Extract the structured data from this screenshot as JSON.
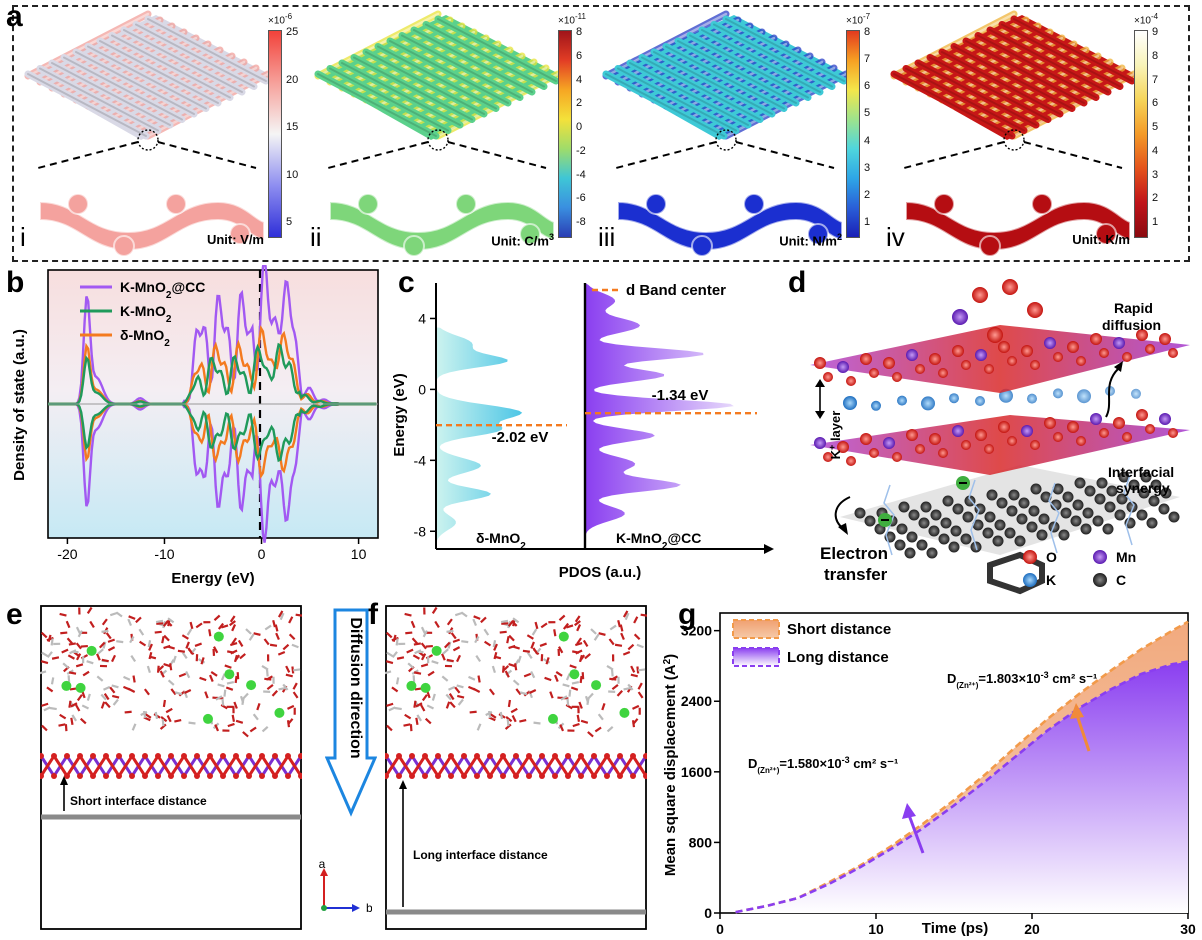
{
  "panel_labels": {
    "a": "a",
    "b": "b",
    "c": "c",
    "d": "d",
    "e": "e",
    "f": "f",
    "g": "g"
  },
  "panel_a": {
    "subpanels": [
      {
        "roman": "i",
        "unit": "Unit: V/m",
        "exponent": "×10",
        "exponent_power": "-6",
        "ticks": [
          "25",
          "20",
          "15",
          "10",
          "5"
        ],
        "colors": [
          "#f2423a",
          "#f6a09a",
          "#f5f5f5",
          "#8e8ef0",
          "#2f2fd8"
        ],
        "fabric": "#d9d9e6",
        "fabric_accent": "#f2a19c",
        "section": "#f4a29e"
      },
      {
        "roman": "ii",
        "unit": "Unit: C/m",
        "unit_sup": "3",
        "exponent": "×10",
        "exponent_power": "-11",
        "ticks": [
          "8",
          "6",
          "4",
          "2",
          "0",
          "-2",
          "-4",
          "-6",
          "-8"
        ],
        "colors": [
          "#a0141a",
          "#e23d25",
          "#f6a623",
          "#f4e13a",
          "#9fdc6a",
          "#3fc6d6",
          "#3a8fe0",
          "#2a3db4"
        ],
        "fabric": "#5bd18c",
        "fabric_accent": "#e9e43a",
        "section": "#7ed67a"
      },
      {
        "roman": "iii",
        "unit": "Unit: N/m",
        "unit_sup": "2",
        "exponent": "×10",
        "exponent_power": "-7",
        "ticks": [
          "8",
          "7",
          "6",
          "5",
          "4",
          "3",
          "2",
          "1"
        ],
        "colors": [
          "#e23a1e",
          "#f6a023",
          "#f4e64a",
          "#9ee38c",
          "#4fd6dd",
          "#2ea6e6",
          "#2a5fd8",
          "#1a1fb6"
        ],
        "fabric": "#3ec9d6",
        "fabric_accent": "#2b3fc8",
        "section": "#1b2fd0"
      },
      {
        "roman": "iv",
        "unit": "Unit: K/m",
        "exponent": "×10",
        "exponent_power": "-4",
        "ticks": [
          "9",
          "8",
          "7",
          "6",
          "5",
          "4",
          "3",
          "2",
          "1"
        ],
        "colors": [
          "#ffffff",
          "#f8f3b8",
          "#f6d55a",
          "#f39a28",
          "#e4531c",
          "#c0141a",
          "#8a0a10"
        ],
        "fabric": "#c71717",
        "fabric_accent": "#f0b43a",
        "section": "#b50d12"
      }
    ]
  },
  "panel_b": {
    "ylabel": "Density of state (a.u.)",
    "xlabel": "Energy (eV)",
    "xticks": [
      "-20",
      "-10",
      "0",
      "10"
    ],
    "legend": [
      {
        "label": "K-MnO",
        "sub": "2",
        "suffix": "@CC",
        "color": "#a259f2"
      },
      {
        "label": "K-MnO",
        "sub": "2",
        "suffix": "",
        "color": "#1f9a5b"
      },
      {
        "label": "δ-MnO",
        "sub": "2",
        "suffix": "",
        "color": "#f47a1f"
      }
    ]
  },
  "panel_c": {
    "ylabel": "Energy (eV)",
    "xlabel": "PDOS (a.u.)",
    "yticks": [
      "4",
      "0",
      "-4",
      "-8"
    ],
    "legend": "d Band center",
    "left_name": "δ-MnO",
    "left_sub": "2",
    "right_name": "K-MnO",
    "right_sub": "2",
    "right_suffix": "@CC",
    "left_center_label": "-2.02 eV",
    "right_center_label": "-1.34 eV",
    "left_center_value": -2.02,
    "right_center_value": -1.34,
    "ylim": [
      -9,
      6
    ]
  },
  "panel_d": {
    "rapid_line1": "Rapid",
    "rapid_line2": "diffusion",
    "k_layer": "K",
    "k_layer_sup": "+",
    "k_layer_suffix": " layer",
    "interfacial_line1": "Interfacial",
    "interfacial_line2": "synergy",
    "electron_line1": "Electron",
    "electron_line2": "transfer",
    "legend": [
      {
        "label": "O",
        "color": "#e0201c"
      },
      {
        "label": "Mn",
        "color": "#7a2fd0"
      },
      {
        "label": "K",
        "color": "#3a8ee0"
      },
      {
        "label": "C",
        "color": "#3a3a3a"
      }
    ]
  },
  "panel_e": {
    "annotation": "Short interface distance"
  },
  "panel_f": {
    "annotation": "Long interface distance"
  },
  "diffusion": {
    "label": "Diffusion direction"
  },
  "axes_icon": {
    "a": "a",
    "b": "b"
  },
  "chart_data": {
    "type": "area",
    "xlabel": "Time   (ps)",
    "ylabel": "Mean square displacement (A",
    "ylabel_sup": "2",
    "ylabel_suffix": ")",
    "xlim": [
      0,
      30
    ],
    "ylim": [
      0,
      3400
    ],
    "xticks": [
      "0",
      "10",
      "20",
      "30"
    ],
    "yticks": [
      "0",
      "800",
      "1600",
      "2400",
      "3200"
    ],
    "series": [
      {
        "name": "Short distance",
        "color": "#f29a4a",
        "x": [
          1,
          3,
          5,
          7,
          9,
          11,
          13,
          15,
          17,
          19,
          21,
          23,
          25,
          27,
          29,
          30
        ],
        "values": [
          10,
          80,
          170,
          350,
          540,
          760,
          1010,
          1280,
          1570,
          1890,
          2200,
          2480,
          2740,
          2990,
          3200,
          3300
        ]
      },
      {
        "name": "Long distance",
        "color": "#8a3ef0",
        "x": [
          1,
          3,
          5,
          7,
          9,
          11,
          13,
          15,
          17,
          19,
          21,
          23,
          25,
          27,
          29,
          30
        ],
        "values": [
          10,
          80,
          170,
          330,
          520,
          730,
          960,
          1220,
          1490,
          1780,
          2070,
          2320,
          2530,
          2710,
          2820,
          2850
        ]
      }
    ],
    "annotations": [
      {
        "text_pre": "D",
        "text_sub": "(Zn²⁺)",
        "text_mid": "=1.803×10",
        "text_sup": "-3",
        "text_post": " cm² s⁻¹"
      },
      {
        "text_pre": "D",
        "text_sub": "(Zn²⁺)",
        "text_mid": "=1.580×10",
        "text_sup": "-3",
        "text_post": " cm² s⁻¹"
      }
    ]
  }
}
